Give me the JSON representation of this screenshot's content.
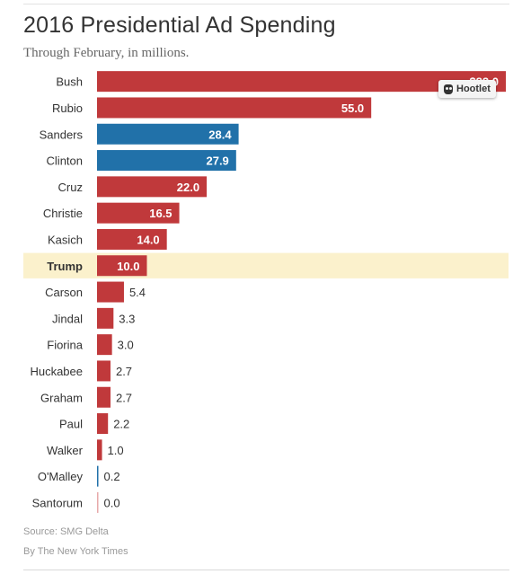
{
  "title": "2016 Presidential Ad Spending",
  "subtitle": "Through February, in millions.",
  "source": "Source: SMG Delta",
  "credit": "By The New York Times",
  "hootlet": {
    "label": "Hootlet",
    "icon": "owl-icon"
  },
  "colors": {
    "republican": "#c0393b",
    "democrat": "#2171a9",
    "highlight": "#fbf1cc",
    "label_outside": "#333333",
    "label_inside": "#ffffff"
  },
  "chart_data": {
    "type": "bar",
    "orientation": "horizontal",
    "title": "2016 Presidential Ad Spending",
    "subtitle": "Through February, in millions.",
    "xlim": [
      0,
      82
    ],
    "highlighted": "Trump",
    "bars": [
      {
        "name": "Bush",
        "value": 82.0,
        "label": "$82.0",
        "party": "R"
      },
      {
        "name": "Rubio",
        "value": 55.0,
        "label": "55.0",
        "party": "R"
      },
      {
        "name": "Sanders",
        "value": 28.4,
        "label": "28.4",
        "party": "D"
      },
      {
        "name": "Clinton",
        "value": 27.9,
        "label": "27.9",
        "party": "D"
      },
      {
        "name": "Cruz",
        "value": 22.0,
        "label": "22.0",
        "party": "R"
      },
      {
        "name": "Christie",
        "value": 16.5,
        "label": "16.5",
        "party": "R"
      },
      {
        "name": "Kasich",
        "value": 14.0,
        "label": "14.0",
        "party": "R"
      },
      {
        "name": "Trump",
        "value": 10.0,
        "label": "10.0",
        "party": "R"
      },
      {
        "name": "Carson",
        "value": 5.4,
        "label": "5.4",
        "party": "R"
      },
      {
        "name": "Jindal",
        "value": 3.3,
        "label": "3.3",
        "party": "R"
      },
      {
        "name": "Fiorina",
        "value": 3.0,
        "label": "3.0",
        "party": "R"
      },
      {
        "name": "Huckabee",
        "value": 2.7,
        "label": "2.7",
        "party": "R"
      },
      {
        "name": "Graham",
        "value": 2.7,
        "label": "2.7",
        "party": "R"
      },
      {
        "name": "Paul",
        "value": 2.2,
        "label": "2.2",
        "party": "R"
      },
      {
        "name": "Walker",
        "value": 1.0,
        "label": "1.0",
        "party": "R"
      },
      {
        "name": "O'Malley",
        "value": 0.2,
        "label": "0.2",
        "party": "D"
      },
      {
        "name": "Santorum",
        "value": 0.0,
        "label": "0.0",
        "party": "R"
      }
    ]
  }
}
